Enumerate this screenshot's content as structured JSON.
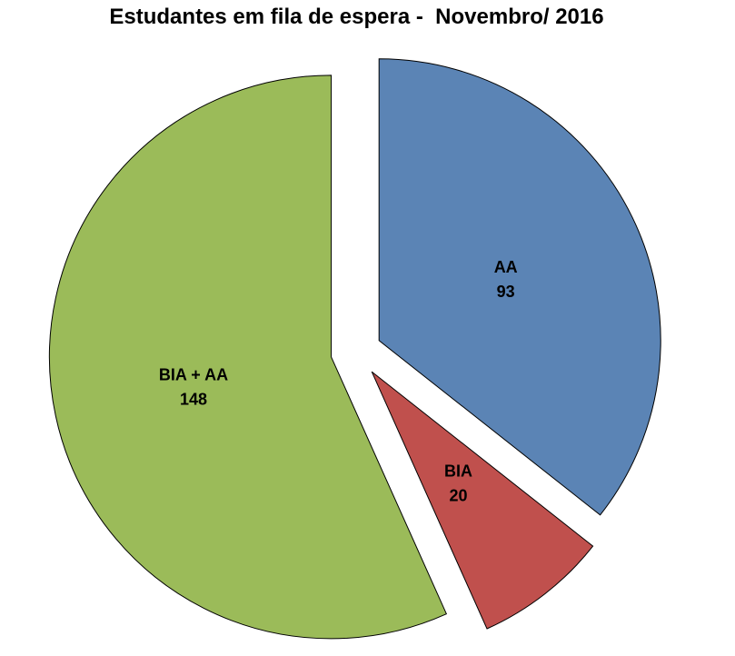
{
  "chart_data": {
    "type": "pie",
    "title": "Estudantes em fila de espera -  Novembro/ 2016",
    "categories": [
      "AA",
      "BIA",
      "BIA + AA"
    ],
    "values": [
      93,
      20,
      148
    ],
    "total": 261,
    "slices": [
      {
        "label": "AA",
        "value": 93,
        "color": "#5B84B5"
      },
      {
        "label": "BIA",
        "value": 20,
        "color": "#C0504D"
      },
      {
        "label": "BIA + AA",
        "value": 148,
        "color": "#9BBB59"
      }
    ],
    "start_angle_deg": 0,
    "direction": "clockwise",
    "exploded": true,
    "explode_ratio": 0.09,
    "data_labels": "category name and value inside slices",
    "label_color": "#000000",
    "slice_border_color": "#000000",
    "legend": "none",
    "title_color": "#000000",
    "background": "#FFFFFF"
  }
}
